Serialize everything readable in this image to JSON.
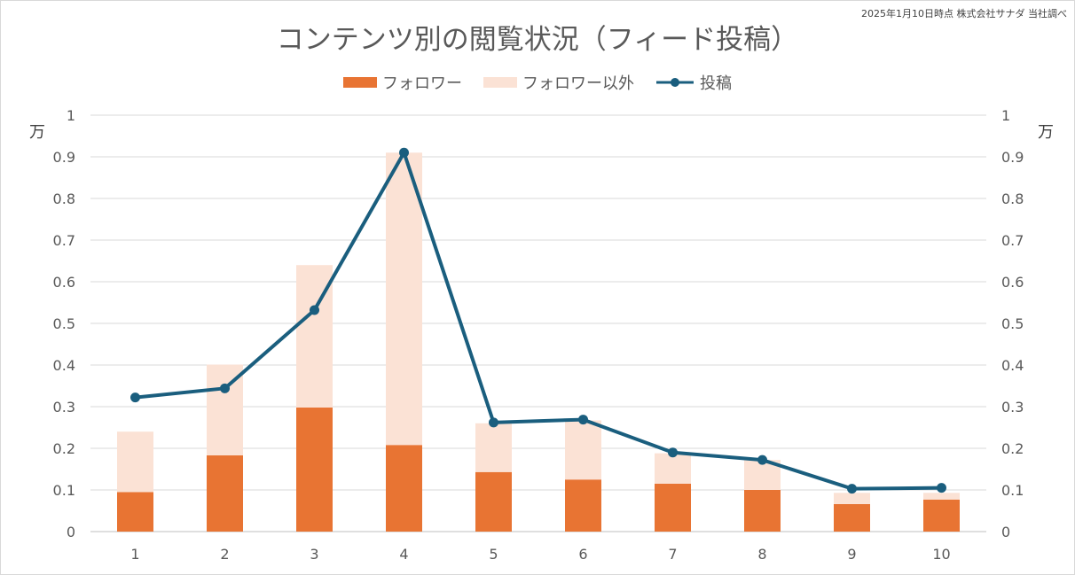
{
  "note": "2025年1月10日時点 株式会社サナダ 当社調べ",
  "chart_data": {
    "type": "bar",
    "title": "コンテンツ別の閲覧状況（フィード投稿）",
    "categories": [
      "1",
      "2",
      "3",
      "4",
      "5",
      "6",
      "7",
      "8",
      "9",
      "10"
    ],
    "series": [
      {
        "name": "フォロワー",
        "kind": "stacked-bar",
        "color": "#e87433",
        "values": [
          0.095,
          0.183,
          0.298,
          0.208,
          0.143,
          0.125,
          0.115,
          0.1,
          0.066,
          0.077
        ]
      },
      {
        "name": "フォロワー以外",
        "kind": "stacked-bar",
        "color": "#fbe2d5",
        "values": [
          0.145,
          0.218,
          0.342,
          0.702,
          0.117,
          0.142,
          0.073,
          0.072,
          0.027,
          0.016
        ]
      },
      {
        "name": "投稿",
        "kind": "line",
        "color": "#1a5e7e",
        "values": [
          0.322,
          0.344,
          0.532,
          0.91,
          0.262,
          0.269,
          0.19,
          0.172,
          0.103,
          0.105
        ]
      }
    ],
    "ylim": [
      0,
      1
    ],
    "yticks": [
      "0",
      "0.1",
      "0.2",
      "0.3",
      "0.4",
      "0.5",
      "0.6",
      "0.7",
      "0.8",
      "0.9",
      "1"
    ],
    "y_unit_left": "万",
    "y_unit_right": "万",
    "grid": true,
    "legend_position": "top"
  }
}
